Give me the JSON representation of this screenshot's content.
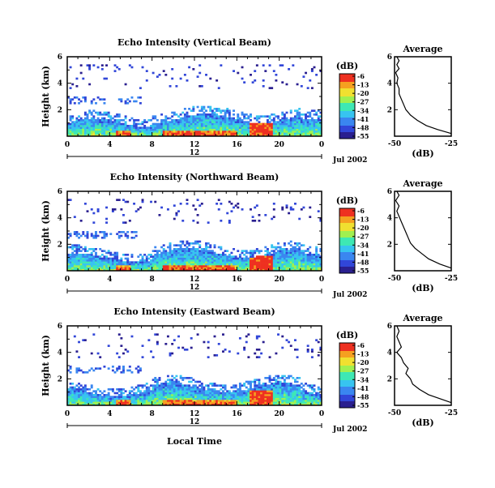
{
  "chart_data": [
    {
      "type": "heatmap",
      "title": "Echo Intensity (Vertical Beam)",
      "ylabel": "Height (km)",
      "yticks": [
        "6",
        "4",
        "2"
      ],
      "xticks": [
        "0",
        "4",
        "8",
        "12",
        "16",
        "20",
        "0"
      ],
      "xlim": [
        0,
        24
      ],
      "ylim": [
        0,
        6
      ],
      "date_center": "12",
      "date_label": "Jul 2002",
      "colorbar": {
        "unit": "(dB)",
        "ticks": [
          "-6",
          "-13",
          "-20",
          "-27",
          "-34",
          "-41",
          "-48",
          "-55"
        ]
      },
      "profile": {
        "title": "Average",
        "xlabel": "(dB)",
        "xticks": [
          "-50",
          "-25"
        ],
        "yticks": [
          "6",
          "4",
          "2"
        ],
        "xlim": [
          -50,
          -25
        ],
        "ylim": [
          0,
          6
        ],
        "points": [
          [
            -25,
            0.2
          ],
          [
            -31,
            0.5
          ],
          [
            -36,
            0.8
          ],
          [
            -40,
            1.2
          ],
          [
            -43,
            1.6
          ],
          [
            -45,
            2.0
          ],
          [
            -46,
            2.4
          ],
          [
            -47,
            2.8
          ],
          [
            -48,
            3.2
          ],
          [
            -48,
            3.6
          ],
          [
            -49,
            4.0
          ],
          [
            -48.5,
            4.4
          ],
          [
            -49.5,
            4.8
          ],
          [
            -48,
            5.1
          ],
          [
            -49,
            5.4
          ],
          [
            -48,
            5.7
          ],
          [
            -49,
            6.0
          ]
        ]
      }
    },
    {
      "type": "heatmap",
      "title": "Echo Intensity (Northward Beam)",
      "ylabel": "Height (km)",
      "yticks": [
        "6",
        "4",
        "2"
      ],
      "xticks": [
        "0",
        "4",
        "8",
        "12",
        "16",
        "20",
        "0"
      ],
      "xlim": [
        0,
        24
      ],
      "ylim": [
        0,
        6
      ],
      "date_center": "12",
      "date_label": "Jul 2002",
      "colorbar": {
        "unit": "(dB)",
        "ticks": [
          "-6",
          "-13",
          "-20",
          "-27",
          "-34",
          "-41",
          "-48",
          "-55"
        ]
      },
      "profile": {
        "title": "Average",
        "xlabel": "(dB)",
        "xticks": [
          "-50",
          "-25"
        ],
        "yticks": [
          "6",
          "4",
          "2"
        ],
        "xlim": [
          -50,
          -25
        ],
        "ylim": [
          0,
          6
        ],
        "points": [
          [
            -25,
            0.2
          ],
          [
            -30,
            0.5
          ],
          [
            -35,
            0.9
          ],
          [
            -38,
            1.3
          ],
          [
            -41,
            1.7
          ],
          [
            -43,
            2.1
          ],
          [
            -44,
            2.5
          ],
          [
            -45,
            2.9
          ],
          [
            -46,
            3.3
          ],
          [
            -47,
            3.7
          ],
          [
            -48,
            4.1
          ],
          [
            -49,
            4.5
          ],
          [
            -48,
            4.9
          ],
          [
            -49.5,
            5.3
          ],
          [
            -48,
            5.7
          ],
          [
            -49,
            6.0
          ]
        ]
      }
    },
    {
      "type": "heatmap",
      "title": "Echo Intensity (Eastward Beam)",
      "ylabel": "Height (km)",
      "yticks": [
        "6",
        "4",
        "2"
      ],
      "xticks": [
        "0",
        "4",
        "8",
        "12",
        "16",
        "20",
        "0"
      ],
      "xlim": [
        0,
        24
      ],
      "ylim": [
        0,
        6
      ],
      "date_center": "12",
      "date_label": "Jul 2002",
      "xlabel": "Local Time",
      "colorbar": {
        "unit": "(dB)",
        "ticks": [
          "-6",
          "-13",
          "-20",
          "-27",
          "-34",
          "-41",
          "-48",
          "-55"
        ]
      },
      "profile": {
        "title": "Average",
        "xlabel": "(dB)",
        "xticks": [
          "-50",
          "-25"
        ],
        "yticks": [
          "6",
          "4",
          "2"
        ],
        "xlim": [
          -50,
          -25
        ],
        "ylim": [
          0,
          6
        ],
        "points": [
          [
            -25,
            0.2
          ],
          [
            -30,
            0.5
          ],
          [
            -35,
            0.8
          ],
          [
            -39,
            1.2
          ],
          [
            -42,
            1.6
          ],
          [
            -43,
            2.0
          ],
          [
            -45,
            2.4
          ],
          [
            -44,
            2.8
          ],
          [
            -46,
            3.2
          ],
          [
            -47,
            3.6
          ],
          [
            -49,
            4.0
          ],
          [
            -47,
            4.4
          ],
          [
            -48,
            4.8
          ],
          [
            -49,
            5.2
          ],
          [
            -48,
            5.6
          ],
          [
            -49,
            6.0
          ]
        ]
      }
    }
  ],
  "colors": {
    "colormap": [
      "#2a1f8f",
      "#3146d8",
      "#3a86f0",
      "#37c4f0",
      "#3ee8b4",
      "#a0f050",
      "#f0e030",
      "#f5a020",
      "#ee3020"
    ]
  }
}
